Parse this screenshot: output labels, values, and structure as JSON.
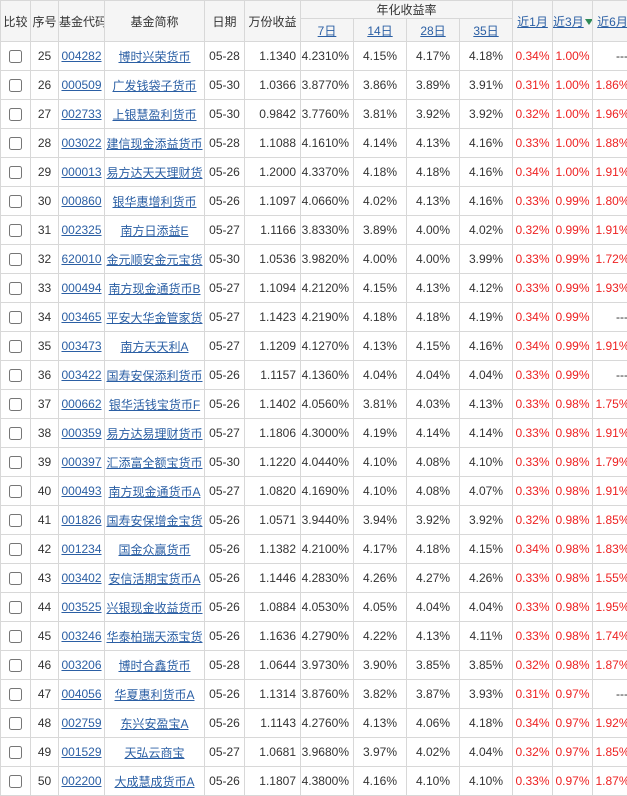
{
  "header": {
    "compare": "比较",
    "seq": "序号",
    "code": "基金代码",
    "name": "基金简称",
    "date": "日期",
    "wfsy": "万份收益",
    "annualized": "年化收益率",
    "d7": "7日",
    "d14": "14日",
    "d28": "28日",
    "d35": "35日",
    "m1": "近1月",
    "m3": "近3月",
    "m6": "近6月"
  },
  "rows": [
    {
      "seq": 25,
      "code": "004282",
      "name": "博时兴荣货币",
      "date": "05-28",
      "wfsy": "1.1340",
      "d7": "4.2310%",
      "d14": "4.15%",
      "d28": "4.17%",
      "d35": "4.18%",
      "m1": "0.34%",
      "m3": "1.00%",
      "m6": "---"
    },
    {
      "seq": 26,
      "code": "000509",
      "name": "广发钱袋子货币",
      "date": "05-30",
      "wfsy": "1.0366",
      "d7": "3.8770%",
      "d14": "3.86%",
      "d28": "3.89%",
      "d35": "3.91%",
      "m1": "0.31%",
      "m3": "1.00%",
      "m6": "1.86%"
    },
    {
      "seq": 27,
      "code": "002733",
      "name": "上银慧盈利货币",
      "date": "05-30",
      "wfsy": "0.9842",
      "d7": "3.7760%",
      "d14": "3.81%",
      "d28": "3.92%",
      "d35": "3.92%",
      "m1": "0.32%",
      "m3": "1.00%",
      "m6": "1.96%"
    },
    {
      "seq": 28,
      "code": "003022",
      "name": "建信现金添益货币",
      "date": "05-28",
      "wfsy": "1.1088",
      "d7": "4.1610%",
      "d14": "4.14%",
      "d28": "4.13%",
      "d35": "4.16%",
      "m1": "0.33%",
      "m3": "1.00%",
      "m6": "1.88%"
    },
    {
      "seq": 29,
      "code": "000013",
      "name": "易方达天天理财货",
      "date": "05-26",
      "wfsy": "1.2000",
      "d7": "4.3370%",
      "d14": "4.18%",
      "d28": "4.18%",
      "d35": "4.16%",
      "m1": "0.34%",
      "m3": "1.00%",
      "m6": "1.91%"
    },
    {
      "seq": 30,
      "code": "000860",
      "name": "银华惠增利货币",
      "date": "05-26",
      "wfsy": "1.1097",
      "d7": "4.0660%",
      "d14": "4.02%",
      "d28": "4.13%",
      "d35": "4.16%",
      "m1": "0.33%",
      "m3": "0.99%",
      "m6": "1.80%"
    },
    {
      "seq": 31,
      "code": "002325",
      "name": "南方日添益E",
      "date": "05-27",
      "wfsy": "1.1166",
      "d7": "3.8330%",
      "d14": "3.89%",
      "d28": "4.00%",
      "d35": "4.02%",
      "m1": "0.32%",
      "m3": "0.99%",
      "m6": "1.91%"
    },
    {
      "seq": 32,
      "code": "620010",
      "name": "金元顺安金元宝货",
      "date": "05-30",
      "wfsy": "1.0536",
      "d7": "3.9820%",
      "d14": "4.00%",
      "d28": "4.00%",
      "d35": "3.99%",
      "m1": "0.33%",
      "m3": "0.99%",
      "m6": "1.72%"
    },
    {
      "seq": 33,
      "code": "000494",
      "name": "南方现金通货币B",
      "date": "05-27",
      "wfsy": "1.1094",
      "d7": "4.2120%",
      "d14": "4.15%",
      "d28": "4.13%",
      "d35": "4.12%",
      "m1": "0.33%",
      "m3": "0.99%",
      "m6": "1.93%"
    },
    {
      "seq": 34,
      "code": "003465",
      "name": "平安大华金管家货",
      "date": "05-27",
      "wfsy": "1.1423",
      "d7": "4.2190%",
      "d14": "4.18%",
      "d28": "4.18%",
      "d35": "4.19%",
      "m1": "0.34%",
      "m3": "0.99%",
      "m6": "---"
    },
    {
      "seq": 35,
      "code": "003473",
      "name": "南方天天利A",
      "date": "05-27",
      "wfsy": "1.1209",
      "d7": "4.1270%",
      "d14": "4.13%",
      "d28": "4.15%",
      "d35": "4.16%",
      "m1": "0.34%",
      "m3": "0.99%",
      "m6": "1.91%"
    },
    {
      "seq": 36,
      "code": "003422",
      "name": "国寿安保添利货币",
      "date": "05-26",
      "wfsy": "1.1157",
      "d7": "4.1360%",
      "d14": "4.04%",
      "d28": "4.04%",
      "d35": "4.04%",
      "m1": "0.33%",
      "m3": "0.99%",
      "m6": "---"
    },
    {
      "seq": 37,
      "code": "000662",
      "name": "银华活钱宝货币F",
      "date": "05-26",
      "wfsy": "1.1402",
      "d7": "4.0560%",
      "d14": "3.81%",
      "d28": "4.03%",
      "d35": "4.13%",
      "m1": "0.33%",
      "m3": "0.98%",
      "m6": "1.75%"
    },
    {
      "seq": 38,
      "code": "000359",
      "name": "易方达易理财货币",
      "date": "05-27",
      "wfsy": "1.1806",
      "d7": "4.3000%",
      "d14": "4.19%",
      "d28": "4.14%",
      "d35": "4.14%",
      "m1": "0.33%",
      "m3": "0.98%",
      "m6": "1.91%"
    },
    {
      "seq": 39,
      "code": "000397",
      "name": "汇添富全额宝货币",
      "date": "05-30",
      "wfsy": "1.1220",
      "d7": "4.0440%",
      "d14": "4.10%",
      "d28": "4.08%",
      "d35": "4.10%",
      "m1": "0.33%",
      "m3": "0.98%",
      "m6": "1.79%"
    },
    {
      "seq": 40,
      "code": "000493",
      "name": "南方现金通货币A",
      "date": "05-27",
      "wfsy": "1.0820",
      "d7": "4.1690%",
      "d14": "4.10%",
      "d28": "4.08%",
      "d35": "4.07%",
      "m1": "0.33%",
      "m3": "0.98%",
      "m6": "1.91%"
    },
    {
      "seq": 41,
      "code": "001826",
      "name": "国寿安保增金宝货",
      "date": "05-26",
      "wfsy": "1.0571",
      "d7": "3.9440%",
      "d14": "3.94%",
      "d28": "3.92%",
      "d35": "3.92%",
      "m1": "0.32%",
      "m3": "0.98%",
      "m6": "1.85%"
    },
    {
      "seq": 42,
      "code": "001234",
      "name": "国金众赢货币",
      "date": "05-26",
      "wfsy": "1.1382",
      "d7": "4.2100%",
      "d14": "4.17%",
      "d28": "4.18%",
      "d35": "4.15%",
      "m1": "0.34%",
      "m3": "0.98%",
      "m6": "1.83%"
    },
    {
      "seq": 43,
      "code": "003402",
      "name": "安信活期宝货币A",
      "date": "05-26",
      "wfsy": "1.1446",
      "d7": "4.2830%",
      "d14": "4.26%",
      "d28": "4.27%",
      "d35": "4.26%",
      "m1": "0.33%",
      "m3": "0.98%",
      "m6": "1.55%"
    },
    {
      "seq": 44,
      "code": "003525",
      "name": "兴银现金收益货币",
      "date": "05-26",
      "wfsy": "1.0884",
      "d7": "4.0530%",
      "d14": "4.05%",
      "d28": "4.04%",
      "d35": "4.04%",
      "m1": "0.33%",
      "m3": "0.98%",
      "m6": "1.95%"
    },
    {
      "seq": 45,
      "code": "003246",
      "name": "华泰柏瑞天添宝货",
      "date": "05-26",
      "wfsy": "1.1636",
      "d7": "4.2790%",
      "d14": "4.22%",
      "d28": "4.13%",
      "d35": "4.11%",
      "m1": "0.33%",
      "m3": "0.98%",
      "m6": "1.74%"
    },
    {
      "seq": 46,
      "code": "003206",
      "name": "博时合鑫货币",
      "date": "05-28",
      "wfsy": "1.0644",
      "d7": "3.9730%",
      "d14": "3.90%",
      "d28": "3.85%",
      "d35": "3.85%",
      "m1": "0.32%",
      "m3": "0.98%",
      "m6": "1.87%"
    },
    {
      "seq": 47,
      "code": "004056",
      "name": "华夏惠利货币A",
      "date": "05-26",
      "wfsy": "1.1314",
      "d7": "3.8760%",
      "d14": "3.82%",
      "d28": "3.87%",
      "d35": "3.93%",
      "m1": "0.31%",
      "m3": "0.97%",
      "m6": "---"
    },
    {
      "seq": 48,
      "code": "002759",
      "name": "东兴安盈宝A",
      "date": "05-26",
      "wfsy": "1.1143",
      "d7": "4.2760%",
      "d14": "4.13%",
      "d28": "4.06%",
      "d35": "4.18%",
      "m1": "0.34%",
      "m3": "0.97%",
      "m6": "1.92%"
    },
    {
      "seq": 49,
      "code": "001529",
      "name": "天弘云商宝",
      "date": "05-27",
      "wfsy": "1.0681",
      "d7": "3.9680%",
      "d14": "3.97%",
      "d28": "4.02%",
      "d35": "4.04%",
      "m1": "0.32%",
      "m3": "0.97%",
      "m6": "1.85%"
    },
    {
      "seq": 50,
      "code": "002200",
      "name": "大成慧成货币A",
      "date": "05-26",
      "wfsy": "1.1807",
      "d7": "4.3800%",
      "d14": "4.16%",
      "d28": "4.10%",
      "d35": "4.10%",
      "m1": "0.33%",
      "m3": "0.97%",
      "m6": "1.87%"
    }
  ]
}
